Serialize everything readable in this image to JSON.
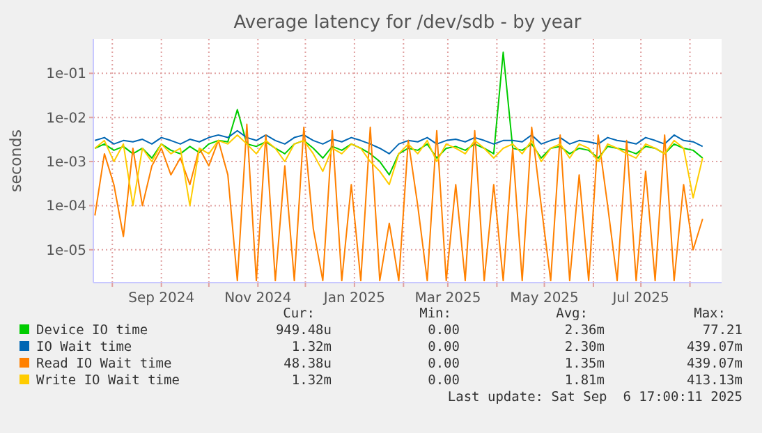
{
  "chart_data": {
    "type": "line",
    "title": "Average latency for /dev/sdb - by year",
    "ylabel": "seconds",
    "log": "y",
    "grid": true,
    "legend": "bottom",
    "line_style": "solid",
    "xlim": [
      "2024-07-20",
      "2025-08-21"
    ],
    "ylim": [
      1.8e-06,
      0.6
    ],
    "yticks": [
      {
        "value": 1e-05,
        "label": "1e-05"
      },
      {
        "value": 0.0001,
        "label": "1e-04"
      },
      {
        "value": 0.001,
        "label": "1e-03"
      },
      {
        "value": 0.01,
        "label": "1e-02"
      },
      {
        "value": 0.1,
        "label": "1e-01"
      }
    ],
    "xticks": [
      {
        "value": "2024-08-01",
        "label": null
      },
      {
        "value": "2024-09-01",
        "label": "Sep 2024"
      },
      {
        "value": "2024-10-01",
        "label": null
      },
      {
        "value": "2024-11-01",
        "label": "Nov 2024"
      },
      {
        "value": "2024-12-01",
        "label": null
      },
      {
        "value": "2025-01-01",
        "label": "Jan 2025"
      },
      {
        "value": "2025-02-01",
        "label": null
      },
      {
        "value": "2025-03-01",
        "label": "Mar 2025"
      },
      {
        "value": "2025-04-01",
        "label": null
      },
      {
        "value": "2025-05-01",
        "label": "May 2025"
      },
      {
        "value": "2025-06-01",
        "label": null
      },
      {
        "value": "2025-07-01",
        "label": "Jul 2025"
      },
      {
        "value": "2025-08-01",
        "label": null
      }
    ],
    "x": [
      "2024-07-21",
      "2024-07-27",
      "2024-08-02",
      "2024-08-08",
      "2024-08-14",
      "2024-08-20",
      "2024-08-26",
      "2024-09-01",
      "2024-09-07",
      "2024-09-13",
      "2024-09-19",
      "2024-09-25",
      "2024-10-01",
      "2024-10-07",
      "2024-10-13",
      "2024-10-19",
      "2024-10-25",
      "2024-10-31",
      "2024-11-06",
      "2024-11-12",
      "2024-11-18",
      "2024-11-24",
      "2024-11-30",
      "2024-12-06",
      "2024-12-12",
      "2024-12-18",
      "2024-12-24",
      "2024-12-30",
      "2025-01-05",
      "2025-01-11",
      "2025-01-17",
      "2025-01-23",
      "2025-01-29",
      "2025-02-04",
      "2025-02-10",
      "2025-02-16",
      "2025-02-22",
      "2025-02-28",
      "2025-03-06",
      "2025-03-12",
      "2025-03-18",
      "2025-03-24",
      "2025-03-30",
      "2025-04-05",
      "2025-04-11",
      "2025-04-17",
      "2025-04-23",
      "2025-04-29",
      "2025-05-05",
      "2025-05-11",
      "2025-05-17",
      "2025-05-23",
      "2025-05-29",
      "2025-06-04",
      "2025-06-10",
      "2025-06-16",
      "2025-06-22",
      "2025-06-28",
      "2025-07-04",
      "2025-07-10",
      "2025-07-16",
      "2025-07-22",
      "2025-07-28",
      "2025-08-03",
      "2025-08-09"
    ],
    "series": [
      {
        "name": "Device IO time",
        "color": "#00cc00",
        "values": [
          0.002,
          0.0025,
          0.0018,
          0.0022,
          0.0015,
          0.002,
          0.0012,
          0.0025,
          0.0018,
          0.0015,
          0.0022,
          0.0016,
          0.0025,
          0.003,
          0.0028,
          0.015,
          0.0025,
          0.0022,
          0.0028,
          0.002,
          0.0015,
          0.0025,
          0.003,
          0.002,
          0.0012,
          0.0022,
          0.0018,
          0.0025,
          0.002,
          0.0015,
          0.001,
          0.0005,
          0.0015,
          0.002,
          0.0018,
          0.0025,
          0.0012,
          0.002,
          0.0022,
          0.0018,
          0.0025,
          0.002,
          0.0015,
          0.3,
          0.002,
          0.0018,
          0.0025,
          0.0012,
          0.002,
          0.0022,
          0.0015,
          0.002,
          0.0018,
          0.0012,
          0.0022,
          0.002,
          0.0018,
          0.0015,
          0.0022,
          0.002,
          0.0015,
          0.0025,
          0.002,
          0.0018,
          0.0012
        ]
      },
      {
        "name": "IO Wait time",
        "color": "#0066b3",
        "values": [
          0.003,
          0.0035,
          0.0025,
          0.003,
          0.0028,
          0.0032,
          0.0025,
          0.0035,
          0.003,
          0.0025,
          0.0032,
          0.0028,
          0.0035,
          0.004,
          0.0035,
          0.005,
          0.0035,
          0.003,
          0.004,
          0.003,
          0.0025,
          0.0035,
          0.004,
          0.003,
          0.0025,
          0.0032,
          0.0028,
          0.0035,
          0.003,
          0.0025,
          0.002,
          0.0015,
          0.0025,
          0.003,
          0.0028,
          0.0035,
          0.0025,
          0.003,
          0.0032,
          0.0028,
          0.0035,
          0.003,
          0.0025,
          0.003,
          0.003,
          0.0028,
          0.004,
          0.0025,
          0.003,
          0.0035,
          0.0025,
          0.003,
          0.0028,
          0.0025,
          0.0035,
          0.003,
          0.0028,
          0.0025,
          0.0035,
          0.003,
          0.0025,
          0.004,
          0.003,
          0.0028,
          0.0022
        ]
      },
      {
        "name": "Read IO Wait time",
        "color": "#ff8000",
        "values": [
          6e-05,
          0.0015,
          0.0003,
          2e-05,
          0.002,
          0.0001,
          0.0008,
          0.002,
          0.0005,
          0.0012,
          0.0003,
          0.002,
          0.0008,
          0.003,
          0.0005,
          2e-06,
          0.007,
          2e-06,
          0.004,
          2e-06,
          0.0008,
          2e-06,
          0.006,
          3e-05,
          2e-06,
          0.005,
          2e-06,
          0.0003,
          2e-06,
          0.006,
          2e-06,
          4e-05,
          2e-06,
          0.003,
          0.0001,
          2e-06,
          0.005,
          2e-06,
          0.0003,
          2e-06,
          0.005,
          2e-06,
          0.0003,
          2e-06,
          0.002,
          2e-06,
          0.006,
          0.0001,
          2e-06,
          0.004,
          2e-06,
          0.0005,
          2e-06,
          0.004,
          0.0001,
          2e-06,
          0.003,
          2e-06,
          0.0006,
          2e-06,
          0.004,
          2e-06,
          0.0003,
          1e-05,
          5e-05
        ]
      },
      {
        "name": "Write IO Wait time",
        "color": "#ffcc00",
        "values": [
          0.002,
          0.003,
          0.001,
          0.0025,
          0.0001,
          0.002,
          0.001,
          0.0025,
          0.0015,
          0.002,
          0.0001,
          0.002,
          0.0015,
          0.003,
          0.0025,
          0.004,
          0.0025,
          0.0015,
          0.003,
          0.002,
          0.001,
          0.0025,
          0.003,
          0.0015,
          0.0006,
          0.002,
          0.0015,
          0.0025,
          0.002,
          0.001,
          0.0006,
          0.0003,
          0.0015,
          0.0025,
          0.0015,
          0.003,
          0.001,
          0.0025,
          0.002,
          0.0015,
          0.003,
          0.002,
          0.0012,
          0.002,
          0.0025,
          0.0015,
          0.003,
          0.001,
          0.002,
          0.0025,
          0.0012,
          0.0025,
          0.002,
          0.001,
          0.0025,
          0.002,
          0.0015,
          0.0012,
          0.0025,
          0.002,
          0.0015,
          0.003,
          0.002,
          0.00015,
          0.0012
        ]
      }
    ],
    "annotations": [
      "Cur:",
      "Min:",
      "Avg:",
      "Max:",
      "949.48u",
      "0.00",
      "2.36m",
      "77.21",
      "1.32m",
      "0.00",
      "2.30m",
      "439.07m",
      "48.38u",
      "0.00",
      "1.35m",
      "439.07m",
      "1.32m",
      "0.00",
      "1.81m",
      "413.13m",
      "Last update: Sat Sep  6 17:00:11 2025"
    ]
  }
}
